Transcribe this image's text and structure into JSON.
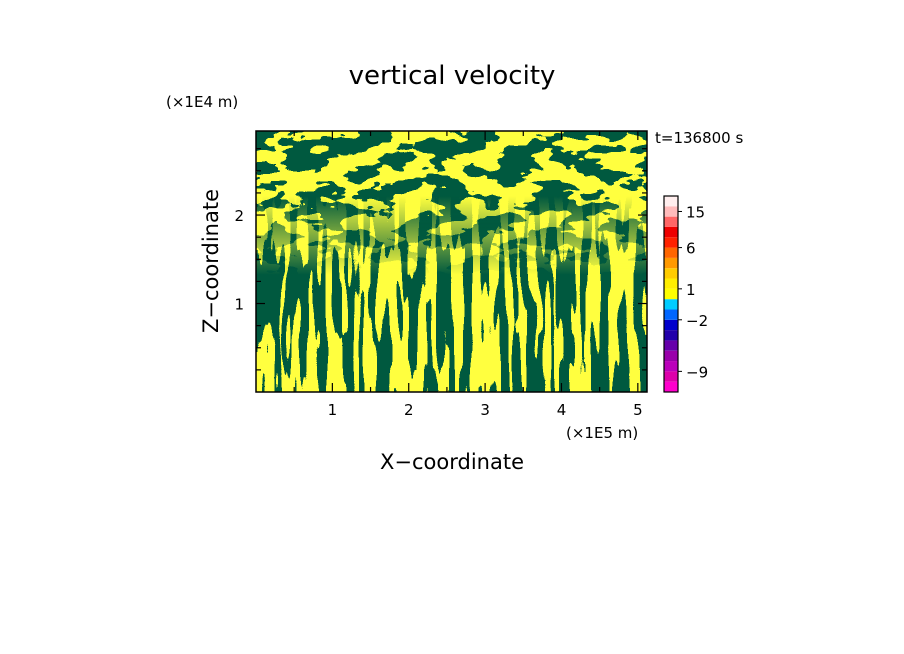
{
  "chart_data": {
    "type": "heatmap",
    "title": "vertical velocity",
    "xlabel": "X−coordinate",
    "ylabel": "Z−coordinate",
    "x_unit": "(×1E5 m)",
    "y_unit": "(×1E4 m)",
    "time_label": "t=136800 s",
    "xlim": [
      0,
      5.12
    ],
    "ylim": [
      0,
      2.95
    ],
    "x_ticks": [
      1,
      2,
      3,
      4,
      5
    ],
    "y_ticks": [
      1,
      2
    ],
    "x_tick_labels": [
      "1",
      "2",
      "3",
      "4",
      "5"
    ],
    "y_tick_labels": [
      "1",
      "2"
    ],
    "colors": {
      "positive": "#ffff00",
      "negative": "#00e5ee"
    },
    "colorbar": {
      "levels": [
        -12,
        -10.5,
        -9,
        -7.5,
        -6,
        -4.5,
        -3,
        -2,
        -1,
        0,
        1,
        2,
        3,
        4.5,
        6,
        7.5,
        10.5,
        13.5,
        16.5,
        21
      ],
      "colors": [
        "#ff00cc",
        "#dd00aa",
        "#bb00bb",
        "#9900aa",
        "#6600aa",
        "#2200aa",
        "#0000cc",
        "#0066ff",
        "#00ccff",
        "#ffff00",
        "#ffee00",
        "#ffcc00",
        "#ff9900",
        "#ff6600",
        "#ff2200",
        "#ee0000",
        "#ff6666",
        "#ffbbbb",
        "#ffeeee"
      ],
      "labels": [
        {
          "text": "15",
          "value": 15
        },
        {
          "text": "6",
          "value": 6
        },
        {
          "text": "1",
          "value": 1
        },
        {
          "text": "−2",
          "value": -2
        },
        {
          "text": "−9",
          "value": -9
        }
      ]
    }
  }
}
